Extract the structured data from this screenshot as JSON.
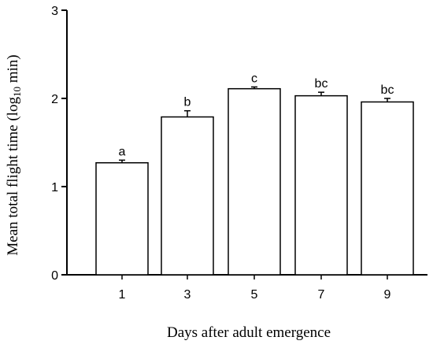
{
  "chart_data": {
    "type": "bar",
    "categories": [
      "1",
      "3",
      "5",
      "7",
      "9"
    ],
    "values": [
      1.27,
      1.79,
      2.11,
      2.03,
      1.96
    ],
    "errors": [
      0.03,
      0.07,
      0.02,
      0.04,
      0.04
    ],
    "significance_labels": [
      "a",
      "b",
      "c",
      "bc",
      "bc"
    ],
    "xlabel": "Days after adult emergence",
    "ylabel": "Mean total flight time (log10 min)",
    "ylabel_parts": {
      "before": "Mean total flight time (log",
      "subscript": "10",
      "after": " min)"
    },
    "ylim": [
      0,
      3
    ],
    "yticks": [
      "0",
      "1",
      "2",
      "3"
    ],
    "grid": false,
    "legend": "none",
    "bar_fill": "#ffffff",
    "bar_stroke": "#000000"
  }
}
